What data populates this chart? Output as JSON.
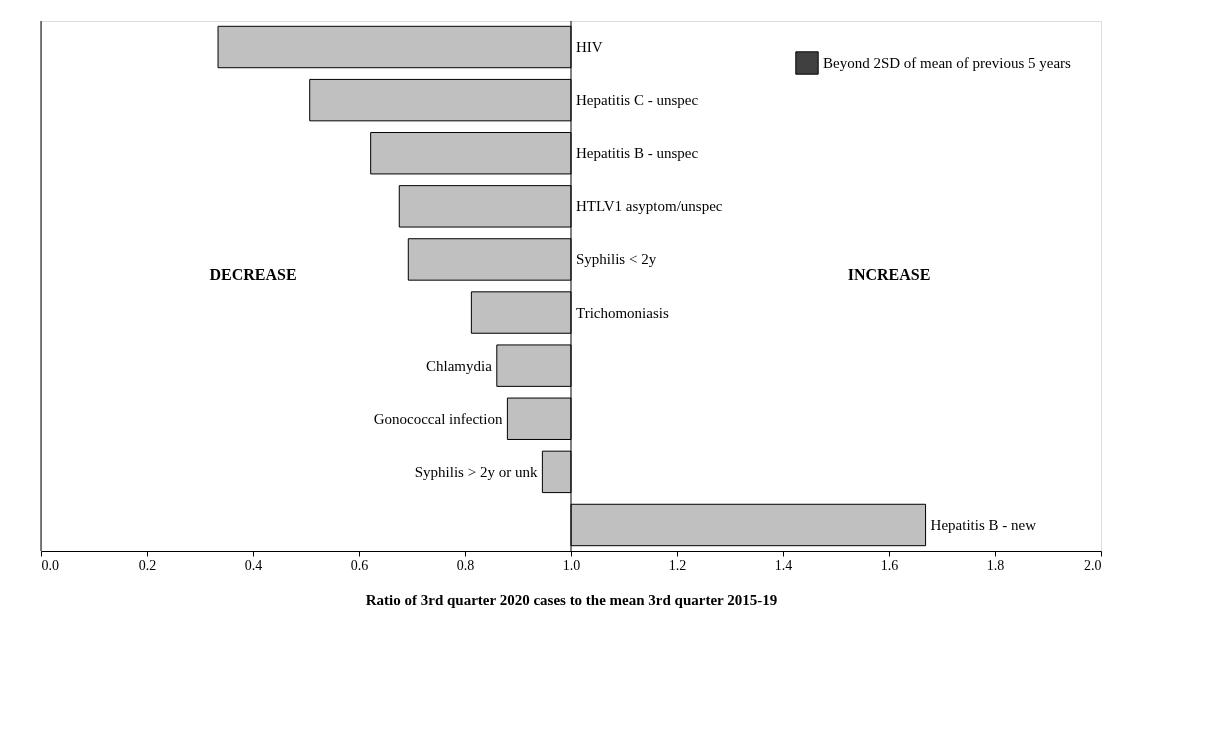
{
  "chart_data": {
    "type": "bar",
    "orientation": "horizontal",
    "xlabel": "Ratio of  3rd quarter 2020 cases to the mean 3rd quarter 2015-19",
    "categories": [
      "HIV",
      "Hepatitis C - unspec",
      "Hepatitis B - unspec",
      "HTLV1 asyptom/unspec",
      "Syphilis < 2y",
      "Trichomoniasis",
      "Chlamydia",
      "Gonococcal infection",
      "Syphilis > 2y or unk",
      "Hepatitis B - new"
    ],
    "series": [
      {
        "color": "#c0c0c0",
        "base": [
          1,
          1,
          1,
          1,
          1,
          1,
          1,
          1,
          1,
          1
        ],
        "values": [
          -0.666,
          -0.493,
          -0.378,
          -0.324,
          -0.307,
          -0.188,
          -0.14,
          -0.12,
          -0.054,
          0.669
        ]
      },
      {
        "name": "Beyond 2SD of mean of previous 5 years",
        "color": "#404040",
        "values": [
          null,
          null,
          null,
          null,
          null,
          null,
          null,
          null,
          null,
          null
        ]
      }
    ],
    "xlim": [
      0,
      2
    ],
    "xticks": [
      {
        "value": 0,
        "label": "0.0"
      },
      {
        "value": 0.2,
        "label": "0.2"
      },
      {
        "value": 0.4,
        "label": "0.4"
      },
      {
        "value": 0.6,
        "label": "0.6"
      },
      {
        "value": 0.8,
        "label": "0.8"
      },
      {
        "value": 1,
        "label": "1.0"
      },
      {
        "value": 1.2,
        "label": "1.2"
      },
      {
        "value": 1.4,
        "label": "1.4"
      },
      {
        "value": 1.6,
        "label": "1.6"
      },
      {
        "value": 1.8,
        "label": "1.8"
      },
      {
        "value": 2,
        "label": "2.0"
      }
    ],
    "annotations": [
      "DECREASE",
      "INCREASE"
    ],
    "legend": "top right",
    "grid": false
  }
}
